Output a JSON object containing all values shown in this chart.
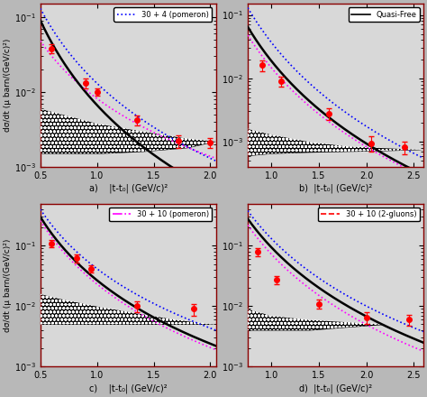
{
  "panels": [
    {
      "label": "a)",
      "xlim": [
        0.5,
        2.05
      ],
      "ylim": [
        0.001,
        0.15
      ],
      "xticks": [
        0.5,
        1.0,
        1.5,
        2.0
      ],
      "legend_label": "30 + 4 (pomeron)",
      "legend_color": "blue",
      "legend_style": "dotted",
      "data_x": [
        0.6,
        0.9,
        1.0,
        1.35,
        1.72,
        2.0
      ],
      "data_y": [
        0.038,
        0.013,
        0.01,
        0.0042,
        0.0022,
        0.0021
      ],
      "data_yerr": [
        0.005,
        0.002,
        0.001,
        0.0006,
        0.0004,
        0.0003
      ],
      "black_line": {
        "x0": 0.5,
        "y0": 0.09,
        "x1": 2.05,
        "y1": 0.00045
      },
      "magenta_line": {
        "x0": 0.5,
        "y0": 0.048,
        "x1": 2.05,
        "y1": 0.0013
      },
      "blue_line": {
        "x0": 0.5,
        "y0": 0.13,
        "x1": 2.05,
        "y1": 0.0012
      },
      "band_x": [
        0.5,
        0.7,
        1.0,
        1.4,
        1.8,
        2.05
      ],
      "band_top": [
        0.006,
        0.005,
        0.0038,
        0.003,
        0.0024,
        0.0022
      ],
      "band_bot": [
        0.0015,
        0.0015,
        0.0015,
        0.0016,
        0.0018,
        0.0022
      ]
    },
    {
      "label": "b)",
      "xlim": [
        0.75,
        2.6
      ],
      "ylim": [
        0.0004,
        0.15
      ],
      "xticks": [
        1.0,
        1.5,
        2.0,
        2.5
      ],
      "legend_label": "Quasi-Free",
      "legend_color": "black",
      "legend_style": "solid",
      "data_x": [
        0.9,
        1.1,
        1.6,
        2.05,
        2.4
      ],
      "data_y": [
        0.016,
        0.009,
        0.0028,
        0.00095,
        0.00082
      ],
      "data_yerr": [
        0.003,
        0.0015,
        0.0006,
        0.00025,
        0.00018
      ],
      "black_line": {
        "x0": 0.75,
        "y0": 0.065,
        "x1": 2.6,
        "y1": 0.0003
      },
      "magenta_line": {
        "x0": 0.75,
        "y0": 0.048,
        "x1": 2.6,
        "y1": 0.00028
      },
      "blue_line": {
        "x0": 0.75,
        "y0": 0.13,
        "x1": 2.6,
        "y1": 0.00055
      },
      "band_x": [
        0.75,
        1.0,
        1.4,
        1.8,
        2.2,
        2.6
      ],
      "band_top": [
        0.0016,
        0.0013,
        0.001,
        0.00085,
        0.0008,
        0.00075
      ],
      "band_bot": [
        0.0006,
        0.00065,
        0.00068,
        0.0007,
        0.00072,
        0.00075
      ]
    },
    {
      "label": "c)",
      "xlim": [
        0.5,
        2.05
      ],
      "ylim": [
        0.001,
        0.5
      ],
      "xticks": [
        0.5,
        1.0,
        1.5,
        2.0
      ],
      "legend_label": "30 + 10 (pomeron)",
      "legend_color": "magenta",
      "legend_style": "dashdot",
      "data_x": [
        0.6,
        0.82,
        0.95,
        1.35,
        1.85
      ],
      "data_y": [
        0.11,
        0.062,
        0.042,
        0.01,
        0.009
      ],
      "data_yerr": [
        0.015,
        0.009,
        0.006,
        0.002,
        0.002
      ],
      "black_line": {
        "x0": 0.5,
        "y0": 0.3,
        "x1": 2.05,
        "y1": 0.0022
      },
      "magenta_line": {
        "x0": 0.5,
        "y0": 0.26,
        "x1": 2.05,
        "y1": 0.0019
      },
      "blue_line": {
        "x0": 0.5,
        "y0": 0.4,
        "x1": 2.05,
        "y1": 0.004
      },
      "band_x": [
        0.5,
        0.7,
        1.0,
        1.3,
        1.7,
        2.05
      ],
      "band_top": [
        0.016,
        0.013,
        0.01,
        0.008,
        0.006,
        0.005
      ],
      "band_bot": [
        0.005,
        0.005,
        0.005,
        0.005,
        0.005,
        0.005
      ]
    },
    {
      "label": "d)",
      "xlim": [
        0.75,
        2.6
      ],
      "ylim": [
        0.001,
        0.5
      ],
      "xticks": [
        1.0,
        1.5,
        2.0,
        2.5
      ],
      "legend_label": "30 + 10 (2-gluons)",
      "legend_color": "red",
      "legend_style": "dashed",
      "data_x": [
        0.85,
        1.05,
        1.5,
        2.0,
        2.45
      ],
      "data_y": [
        0.08,
        0.027,
        0.011,
        0.0065,
        0.006
      ],
      "data_yerr": [
        0.012,
        0.004,
        0.002,
        0.0015,
        0.0012
      ],
      "black_line": {
        "x0": 0.75,
        "y0": 0.28,
        "x1": 2.6,
        "y1": 0.0025
      },
      "magenta_line": {
        "x0": 0.75,
        "y0": 0.22,
        "x1": 2.6,
        "y1": 0.0018
      },
      "blue_line": {
        "x0": 0.75,
        "y0": 0.38,
        "x1": 2.6,
        "y1": 0.0038
      },
      "band_x": [
        0.75,
        1.0,
        1.4,
        1.8,
        2.2,
        2.6
      ],
      "band_top": [
        0.009,
        0.007,
        0.006,
        0.0055,
        0.005,
        0.005
      ],
      "band_bot": [
        0.004,
        0.004,
        0.004,
        0.0045,
        0.005,
        0.005
      ]
    }
  ],
  "ylabel": "dσ/dt (μ barn/(GeV/c)²)",
  "xlabel_template": "|t-t₀| (GeV/c)²",
  "plot_bg": "#d8d8d8",
  "fig_bg": "#b8b8b8"
}
